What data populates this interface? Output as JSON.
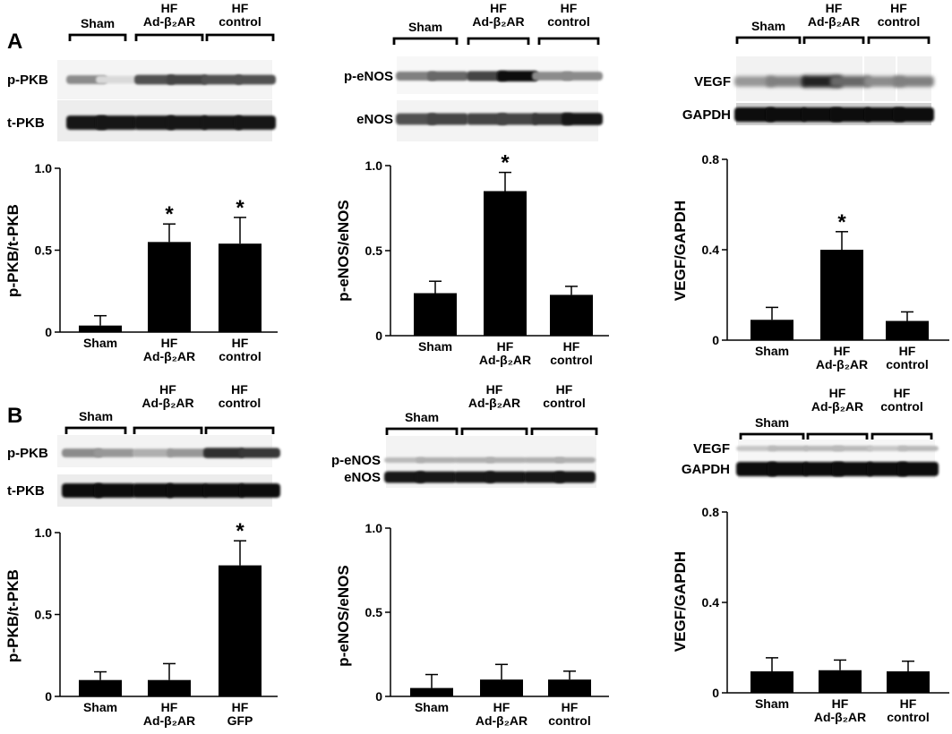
{
  "figure": {
    "panel_labels": [
      "A",
      "B"
    ],
    "blot_group_headers": {
      "sham": [
        "Sham"
      ],
      "ad": [
        "HF",
        "Ad-β₂AR"
      ],
      "control": [
        "HF",
        "control"
      ]
    },
    "blot_row_labels": {
      "A": [
        [
          "p-PKB",
          "t-PKB"
        ],
        [
          "p-eNOS",
          "eNOS"
        ],
        [
          "VEGF",
          "GAPDH"
        ]
      ],
      "B": [
        [
          "p-PKB",
          "t-PKB"
        ],
        [
          "p-eNOS",
          "eNOS"
        ],
        [
          "VEGF",
          "GAPDH"
        ]
      ]
    }
  },
  "chart_data": [
    {
      "panel": "A",
      "type": "bar",
      "categories": [
        [
          "Sham"
        ],
        [
          "HF",
          "Ad-β₂AR"
        ],
        [
          "HF",
          "control"
        ]
      ],
      "values": [
        0.04,
        0.55,
        0.54
      ],
      "errors": [
        0.06,
        0.11,
        0.16
      ],
      "significant": [
        false,
        true,
        true
      ],
      "ylabel": "p-PKB/t-PKB",
      "ylim": [
        0,
        1.0
      ],
      "yticks": [
        0,
        0.5,
        1.0
      ],
      "ytick_labels": [
        "0",
        "0.5",
        "1.0"
      ]
    },
    {
      "panel": "A",
      "type": "bar",
      "categories": [
        [
          "Sham"
        ],
        [
          "HF",
          "Ad-β₂AR"
        ],
        [
          "HF",
          "control"
        ]
      ],
      "values": [
        0.25,
        0.85,
        0.24
      ],
      "errors": [
        0.07,
        0.11,
        0.05
      ],
      "significant": [
        false,
        true,
        false
      ],
      "ylabel": "p-eNOS/eNOS",
      "ylim": [
        0,
        1.0
      ],
      "yticks": [
        0,
        0.5,
        1.0
      ],
      "ytick_labels": [
        "0",
        "0.5",
        "1.0"
      ]
    },
    {
      "panel": "A",
      "type": "bar",
      "categories": [
        [
          "Sham"
        ],
        [
          "HF",
          "Ad-β₂AR"
        ],
        [
          "HF",
          "control"
        ]
      ],
      "values": [
        0.09,
        0.4,
        0.085
      ],
      "errors": [
        0.055,
        0.08,
        0.04
      ],
      "significant": [
        false,
        true,
        false
      ],
      "ylabel": "VEGF/GAPDH",
      "ylim": [
        0,
        0.8
      ],
      "yticks": [
        0,
        0.4,
        0.8
      ],
      "ytick_labels": [
        "0",
        "0.4",
        "0.8"
      ]
    },
    {
      "panel": "B",
      "type": "bar",
      "categories": [
        [
          "Sham"
        ],
        [
          "HF",
          "Ad-β₂AR"
        ],
        [
          "HF",
          "GFP"
        ]
      ],
      "values": [
        0.1,
        0.1,
        0.8
      ],
      "errors": [
        0.05,
        0.1,
        0.15
      ],
      "significant": [
        false,
        false,
        true
      ],
      "ylabel": "p-PKB/t-PKB",
      "ylim": [
        0,
        1.0
      ],
      "yticks": [
        0,
        0.5,
        1.0
      ],
      "ytick_labels": [
        "0",
        "0.5",
        "1.0"
      ]
    },
    {
      "panel": "B",
      "type": "bar",
      "categories": [
        [
          "Sham"
        ],
        [
          "HF",
          "Ad-β₂AR"
        ],
        [
          "HF",
          "control"
        ]
      ],
      "values": [
        0.05,
        0.1,
        0.1
      ],
      "errors": [
        0.08,
        0.09,
        0.05
      ],
      "significant": [
        false,
        false,
        false
      ],
      "ylabel": "p-eNOS/eNOS",
      "ylim": [
        0,
        1.0
      ],
      "yticks": [
        0,
        0.5,
        1.0
      ],
      "ytick_labels": [
        "0",
        "0.5",
        "1.0"
      ]
    },
    {
      "panel": "B",
      "type": "bar",
      "categories": [
        [
          "Sham"
        ],
        [
          "HF",
          "Ad-β₂AR"
        ],
        [
          "HF",
          "control"
        ]
      ],
      "values": [
        0.095,
        0.1,
        0.095
      ],
      "errors": [
        0.06,
        0.045,
        0.045
      ],
      "significant": [
        false,
        false,
        false
      ],
      "ylabel": "VEGF/GAPDH",
      "ylim": [
        0,
        0.8
      ],
      "yticks": [
        0,
        0.4,
        0.8
      ],
      "ytick_labels": [
        "0",
        "0.4",
        "0.8"
      ]
    }
  ]
}
